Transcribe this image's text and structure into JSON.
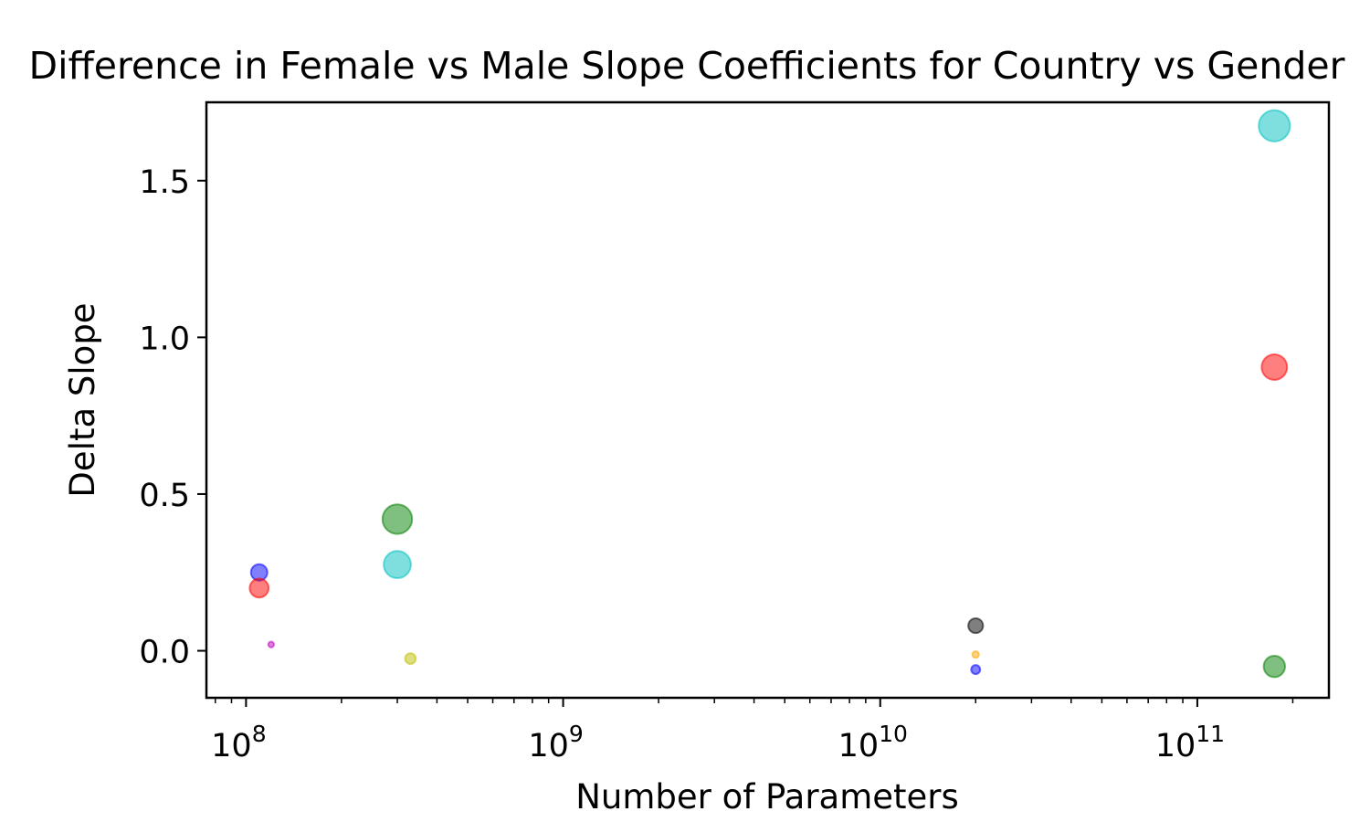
{
  "chart_data": {
    "type": "scatter",
    "title": "Difference in Female vs Male Slope Coefficients for Country vs Gender",
    "xlabel": "Number of Parameters",
    "ylabel": "Delta Slope",
    "xscale": "log",
    "xlim": [
      75000000,
      260000000000
    ],
    "ylim": [
      -0.15,
      1.75
    ],
    "xticks": [
      {
        "value": 100000000,
        "base": "10",
        "exp": "8"
      },
      {
        "value": 1000000000,
        "base": "10",
        "exp": "9"
      },
      {
        "value": 10000000000,
        "base": "10",
        "exp": "10"
      },
      {
        "value": 100000000000,
        "base": "10",
        "exp": "11"
      }
    ],
    "yticks": [
      {
        "value": 0.0,
        "label": "0.0"
      },
      {
        "value": 0.5,
        "label": "0.5"
      },
      {
        "value": 1.0,
        "label": "1.0"
      },
      {
        "value": 1.5,
        "label": "1.5"
      }
    ],
    "grid": false,
    "points": [
      {
        "x": 110000000,
        "y": 0.25,
        "size": 2.0,
        "color": "#0000ff"
      },
      {
        "x": 110000000,
        "y": 0.2,
        "size": 2.3,
        "color": "#ff0000"
      },
      {
        "x": 120000000,
        "y": 0.02,
        "size": 0.7,
        "color": "#bf00bf"
      },
      {
        "x": 300000000,
        "y": 0.42,
        "size": 3.6,
        "color": "#008000"
      },
      {
        "x": 300000000,
        "y": 0.275,
        "size": 3.3,
        "color": "#00bfbf"
      },
      {
        "x": 330000000,
        "y": -0.025,
        "size": 1.3,
        "color": "#bfbf00"
      },
      {
        "x": 20000000000,
        "y": 0.08,
        "size": 1.8,
        "color": "#000000"
      },
      {
        "x": 20000000000,
        "y": -0.012,
        "size": 0.8,
        "color": "#ffa500"
      },
      {
        "x": 20000000000,
        "y": -0.06,
        "size": 1.1,
        "color": "#0000ff"
      },
      {
        "x": 175000000000,
        "y": 1.675,
        "size": 3.8,
        "color": "#00bfbf"
      },
      {
        "x": 175000000000,
        "y": 0.905,
        "size": 3.1,
        "color": "#ff0000"
      },
      {
        "x": 175000000000,
        "y": -0.05,
        "size": 2.6,
        "color": "#008000"
      }
    ]
  }
}
